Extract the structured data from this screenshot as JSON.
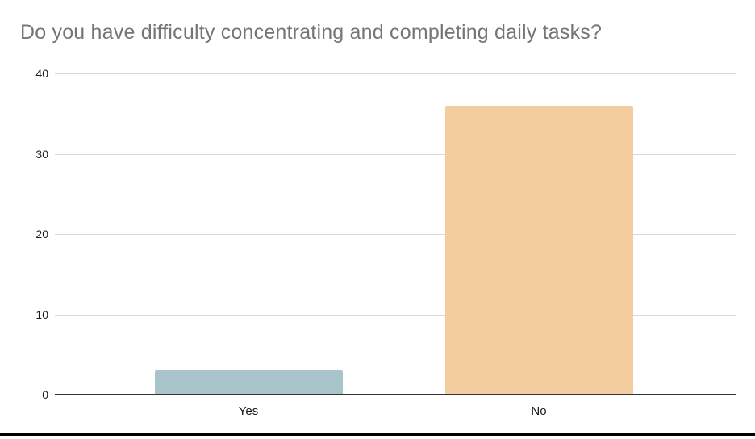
{
  "chart_data": {
    "type": "bar",
    "title": "Do you have difficulty concentrating and completing daily tasks?",
    "categories": [
      "Yes",
      "No"
    ],
    "values": [
      3,
      36
    ],
    "xlabel": "",
    "ylabel": "",
    "ylim": [
      0,
      40
    ],
    "yticks": [
      0,
      10,
      20,
      30,
      40
    ],
    "grid": true,
    "legend": "none",
    "bar_colors": [
      "#aac4cc",
      "#f3cd9e"
    ],
    "title_color": "#757575",
    "gridline_color": "#d9d9d9",
    "axis_line_color": "#333333",
    "tick_label_color": "#1a1a1a"
  },
  "page": {
    "background": "#ffffff",
    "bottom_edge_color": "#000000"
  }
}
